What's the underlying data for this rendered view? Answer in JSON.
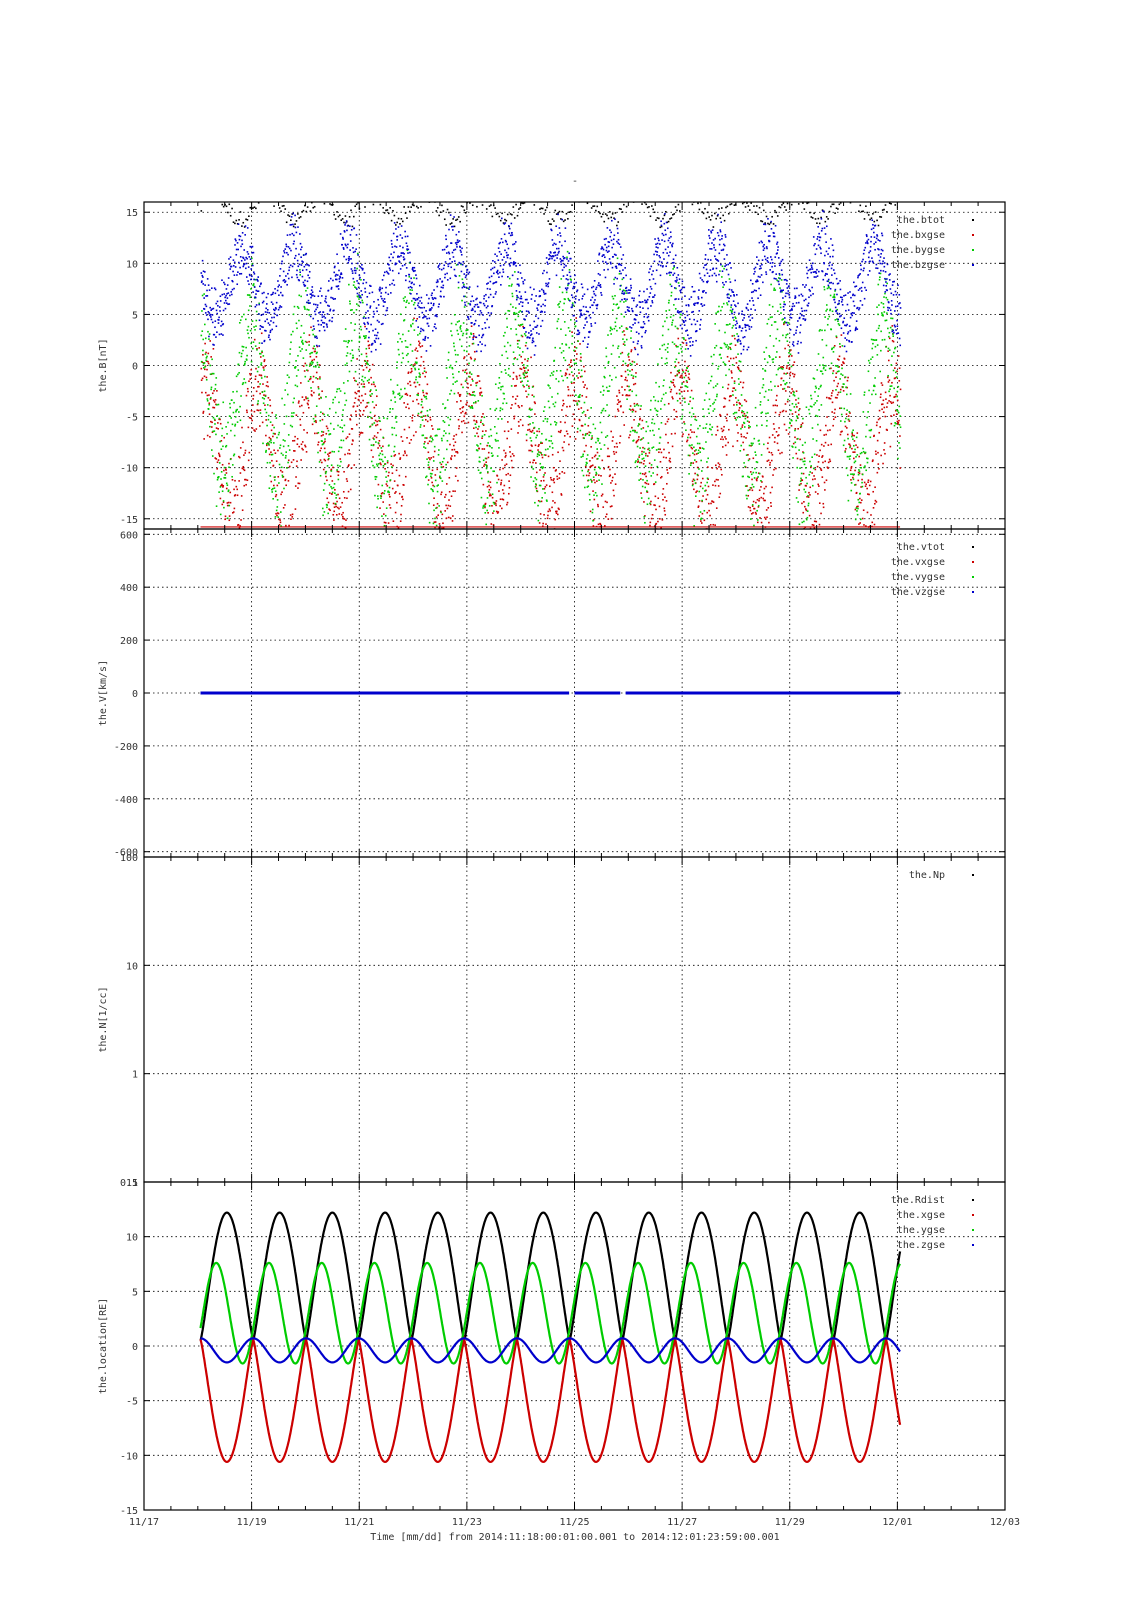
{
  "title": "-",
  "colors": {
    "black": "#000000",
    "red": "#cc0000",
    "green": "#00cc00",
    "blue": "#0000cc"
  },
  "x_axis": {
    "ticks": [
      "11/17",
      "11/19",
      "11/21",
      "11/23",
      "11/25",
      "11/27",
      "11/29",
      "12/01",
      "12/03"
    ],
    "label": "Time [mm/dd]  from 2014:11:18:00:01:00.001  to  2014:12:01:23:59:00.001",
    "range_days": [
      0,
      16
    ]
  },
  "chart_data": [
    {
      "type": "scatter",
      "ylabel": "the.B[nT]",
      "ylim": [
        -16,
        16
      ],
      "yticks": [
        "15",
        "10",
        "5",
        "0",
        "-5",
        "-10",
        "-15"
      ],
      "grid": true,
      "legend_position": "top-right",
      "series": [
        {
          "name": "the.btot",
          "color": "black"
        },
        {
          "name": "the.bxgse",
          "color": "red"
        },
        {
          "name": "the.bygse",
          "color": "green"
        },
        {
          "name": "the.bzgse",
          "color": "blue"
        }
      ]
    },
    {
      "type": "line",
      "ylabel": "the.V[km/s]",
      "ylim": [
        -620,
        620
      ],
      "yticks": [
        "600",
        "400",
        "200",
        "0",
        "-200",
        "-400",
        "-600"
      ],
      "grid": true,
      "legend_position": "top-right",
      "series": [
        {
          "name": "the.vtot",
          "color": "black",
          "value": 0
        },
        {
          "name": "the.vxgse",
          "color": "red",
          "value": 0
        },
        {
          "name": "the.vygse",
          "color": "green",
          "value": 0
        },
        {
          "name": "the.vzgse",
          "color": "blue",
          "value": 0
        }
      ],
      "x_segments": [
        [
          1.05,
          7.9
        ],
        [
          8.0,
          8.85
        ],
        [
          8.95,
          14.05
        ]
      ]
    },
    {
      "type": "line",
      "ylabel": "the.N[1/cc]",
      "scale": "log",
      "ylim": [
        0.1,
        100
      ],
      "yticks": [
        "100",
        "10",
        "1",
        "0.1"
      ],
      "grid": true,
      "legend_position": "top-right",
      "series": [
        {
          "name": "the.Np",
          "color": "black",
          "values": []
        }
      ]
    },
    {
      "type": "line",
      "ylabel": "the.location[RE]",
      "ylim": [
        -15,
        15
      ],
      "yticks": [
        "15",
        "10",
        "5",
        "0",
        "-5",
        "-10",
        "-15"
      ],
      "grid": true,
      "legend_position": "top-right",
      "orbit_period_days": 0.98,
      "series": [
        {
          "name": "the.Rdist",
          "color": "black",
          "max": 12.2,
          "min": 0.5
        },
        {
          "name": "the.xgse",
          "color": "red",
          "max": 0.6,
          "min": -10.6
        },
        {
          "name": "the.ygse",
          "color": "green",
          "max": 7.6,
          "min": -1.6
        },
        {
          "name": "the.zgse",
          "color": "blue",
          "max": 0.7,
          "min": -1.5
        }
      ]
    }
  ]
}
